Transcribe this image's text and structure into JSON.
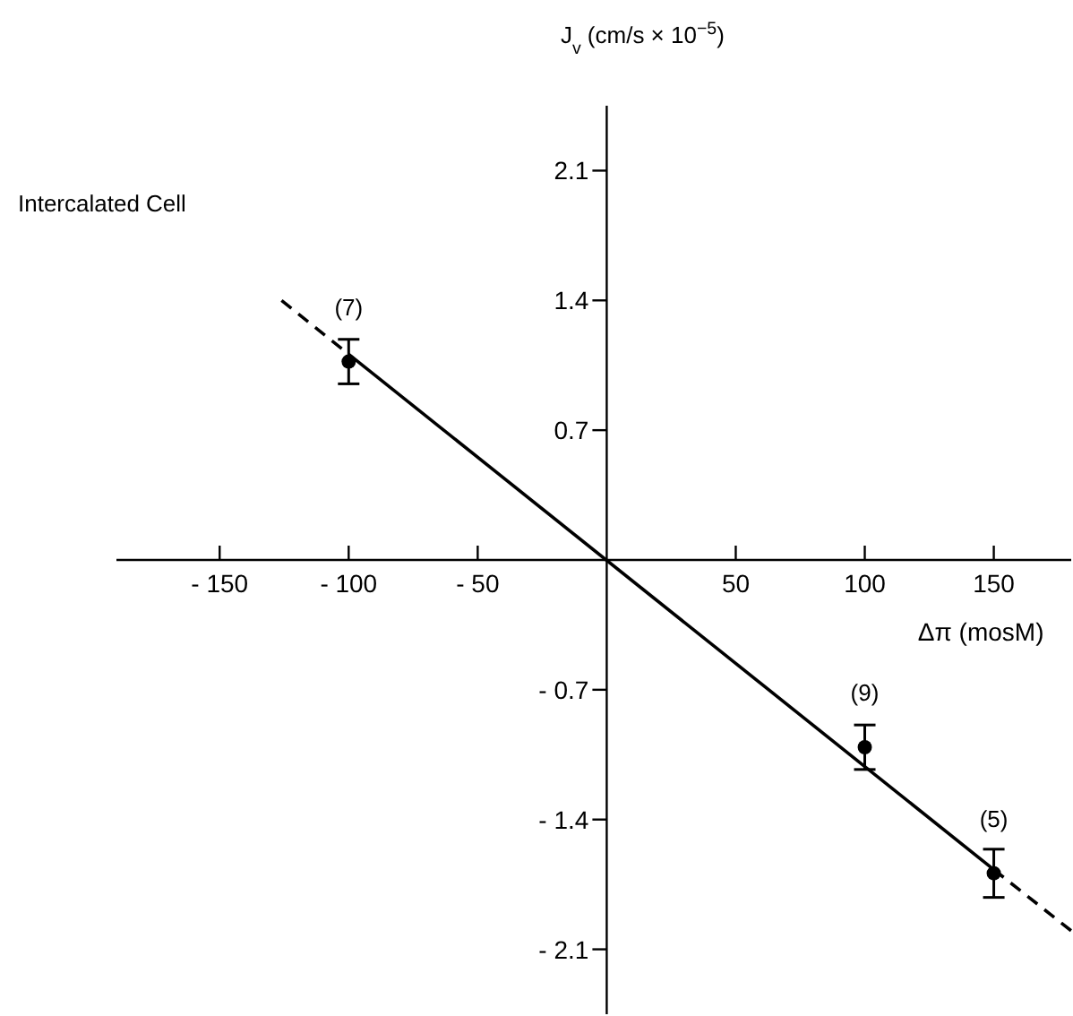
{
  "chart_data": {
    "type": "scatter",
    "title": "Intercalated Cell",
    "xlabel": "Δπ (mosM)",
    "ylabel": "J$_{v}$ (cm/s × 10$^{−5}$)",
    "xlim": [
      -190,
      180
    ],
    "ylim": [
      -2.45,
      2.45
    ],
    "xticks": [
      {
        "value": -150,
        "label": "- 150"
      },
      {
        "value": -100,
        "label": "- 100"
      },
      {
        "value": -50,
        "label": "- 50"
      },
      50,
      100,
      150
    ],
    "yticks": [
      2.1,
      1.4,
      0.7,
      {
        "value": -0.7,
        "label": "- 0.7"
      },
      {
        "value": -1.4,
        "label": "- 1.4"
      },
      {
        "value": -2.1,
        "label": "- 2.1"
      }
    ],
    "grid": false,
    "series": [
      {
        "color": "#000000",
        "marker": "circle",
        "x": [
          -100,
          100,
          150
        ],
        "values": [
          1.07,
          -1.01,
          -1.69
        ],
        "errors": [
          0.12,
          0.12,
          0.13
        ]
      },
      {
        "type": "line",
        "color": "#000000",
        "line_style": "solid",
        "marker": "none",
        "x": [
          -100,
          150
        ],
        "values": [
          1.11,
          -1.67
        ]
      },
      {
        "type": "line",
        "color": "#000000",
        "line_style": "dashed",
        "marker": "none",
        "x": [
          -126,
          -100
        ],
        "values": [
          1.4,
          1.11
        ]
      },
      {
        "type": "line",
        "color": "#000000",
        "line_style": "dashed",
        "marker": "none",
        "x": [
          150,
          180
        ],
        "values": [
          -1.67,
          -2.0
        ]
      }
    ],
    "annotations": [
      {
        "text": "(7)",
        "x": -100,
        "y": 1.07
      },
      {
        "text": "(9)",
        "x": 100,
        "y": -1.01
      },
      {
        "text": "(5)",
        "x": 150,
        "y": -1.69
      }
    ]
  }
}
